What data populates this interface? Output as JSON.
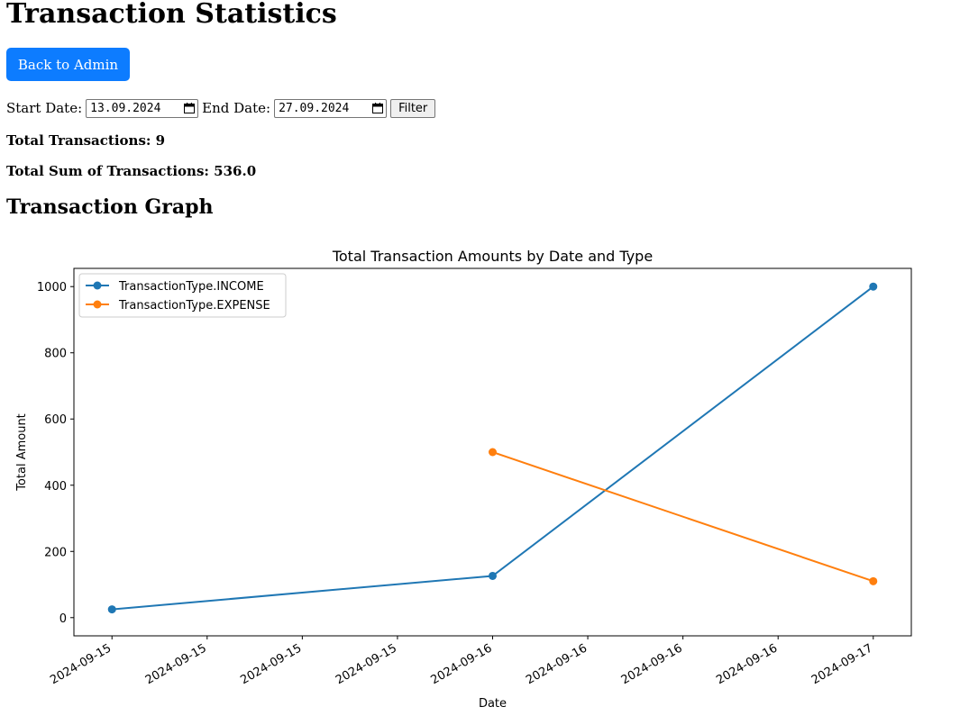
{
  "page": {
    "title": "Transaction Statistics",
    "back_button": "Back to Admin",
    "filter": {
      "start_label": "Start Date:",
      "start_value": "13.09.2024",
      "end_label": "End Date:",
      "end_value": "27.09.2024",
      "button": "Filter"
    },
    "total_transactions": "Total Transactions: 9",
    "total_sum": "Total Sum of Transactions: 536.0",
    "graph_heading": "Transaction Graph"
  },
  "chart_data": {
    "type": "line",
    "title": "Total Transaction Amounts by Date and Type",
    "xlabel": "Date",
    "ylabel": "Total Amount",
    "x_tick_labels": [
      "2024-09-15",
      "2024-09-15",
      "2024-09-15",
      "2024-09-15",
      "2024-09-16",
      "2024-09-16",
      "2024-09-16",
      "2024-09-16",
      "2024-09-17"
    ],
    "xlim": [
      "2024-09-15",
      "2024-09-17"
    ],
    "ylim": [
      0,
      1000
    ],
    "y_ticks": [
      0,
      200,
      400,
      600,
      800,
      1000
    ],
    "legend_position": "top-left",
    "grid": false,
    "series": [
      {
        "name": "TransactionType.INCOME",
        "color": "#1f77b4",
        "points": [
          {
            "x": "2024-09-15",
            "y": 25
          },
          {
            "x": "2024-09-16",
            "y": 126
          },
          {
            "x": "2024-09-17",
            "y": 1000
          }
        ]
      },
      {
        "name": "TransactionType.EXPENSE",
        "color": "#ff7f0e",
        "points": [
          {
            "x": "2024-09-16",
            "y": 500
          },
          {
            "x": "2024-09-17",
            "y": 110
          }
        ]
      }
    ]
  }
}
